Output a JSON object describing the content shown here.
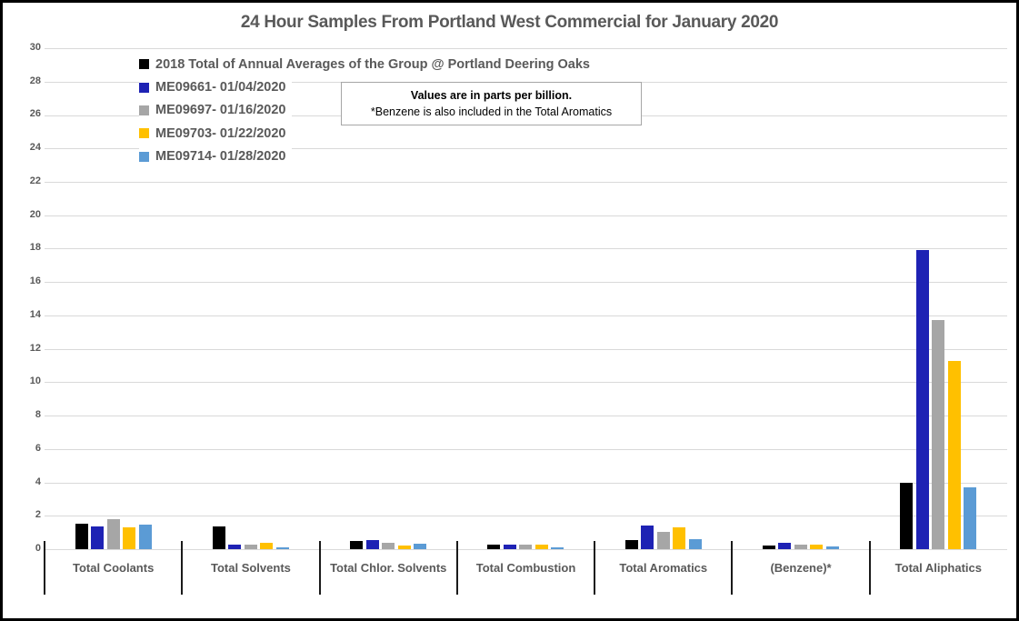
{
  "chart_data": {
    "type": "bar",
    "title": "24 Hour Samples From Portland West Commercial for January 2020",
    "units": "parts per billion",
    "categories": [
      "Total Coolants",
      "Total Solvents",
      "Total Chlor. Solvents",
      "Total Combustion",
      "Total Aromatics",
      "(Benzene)*",
      "Total Aliphatics"
    ],
    "series": [
      {
        "name": "2018 Total of Annual Averages of the Group @ Portland Deering Oaks",
        "color": "#000000",
        "values": [
          1.5,
          1.35,
          0.5,
          0.27,
          0.55,
          0.2,
          4.0
        ]
      },
      {
        "name": "ME09661- 01/04/2020",
        "color": "#1E22B4",
        "values": [
          1.35,
          0.3,
          0.55,
          0.3,
          1.4,
          0.4,
          17.9
        ]
      },
      {
        "name": "ME09697- 01/16/2020",
        "color": "#A6A6A6",
        "values": [
          1.8,
          0.3,
          0.4,
          0.25,
          1.05,
          0.3,
          13.7
        ]
      },
      {
        "name": "ME09703- 01/22/2020",
        "color": "#FFC000",
        "values": [
          1.3,
          0.4,
          0.2,
          0.3,
          1.3,
          0.3,
          11.3
        ]
      },
      {
        "name": "ME09714- 01/28/2020",
        "color": "#5B9BD5",
        "values": [
          1.45,
          0.1,
          0.35,
          0.1,
          0.6,
          0.15,
          3.7
        ]
      }
    ],
    "ylim": [
      0,
      30
    ],
    "ytick_step": 2,
    "grid": true,
    "legend_position": "inside-top-left",
    "annotation": {
      "line1": "Values are in parts per billion.",
      "line2": "*Benzene is also included in the Total Aromatics"
    }
  },
  "colors": {
    "grid": "#D9D9D9",
    "axis_text": "#595959",
    "title_text": "#595959",
    "category_separator": "#1a1a1a",
    "note_border": "#A6A6A6",
    "frame_border": "#000000",
    "background": "#ffffff"
  }
}
